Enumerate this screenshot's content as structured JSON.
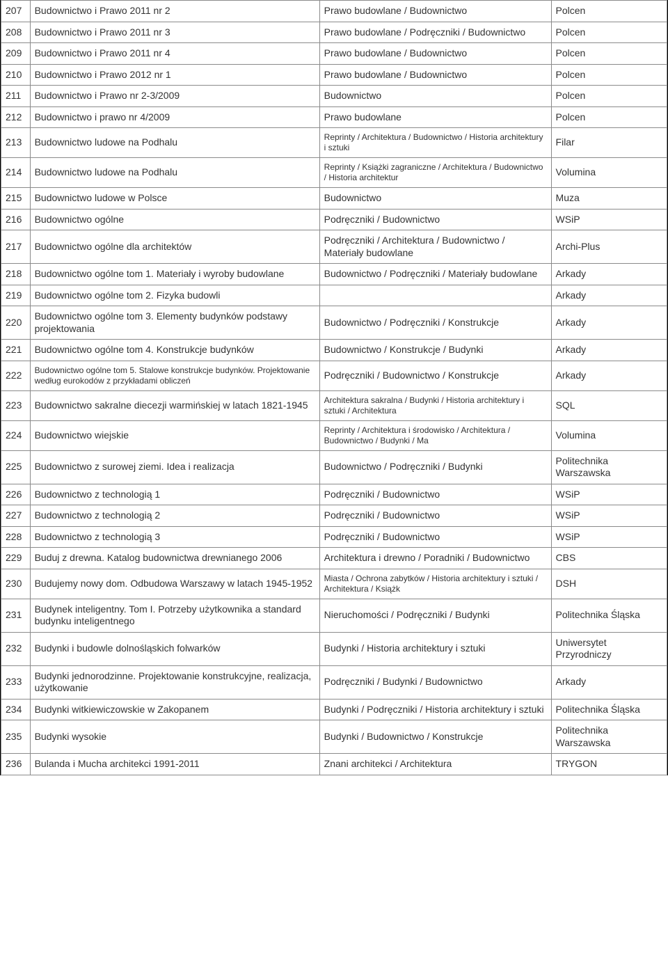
{
  "columns": {
    "num_width": 40,
    "title_width": 400,
    "cats_width": 320,
    "pub_width": 160
  },
  "rows": [
    {
      "num": "207",
      "title": "Budownictwo i Prawo 2011 nr 2",
      "cats": "Prawo budowlane  /  Budownictwo",
      "pub": "Polcen"
    },
    {
      "num": "208",
      "title": "Budownictwo i Prawo 2011 nr 3",
      "cats": "Prawo budowlane  /  Podręczniki  /  Budownictwo",
      "pub": "Polcen"
    },
    {
      "num": "209",
      "title": "Budownictwo i Prawo 2011 nr 4",
      "cats": "Prawo budowlane  /  Budownictwo",
      "pub": "Polcen"
    },
    {
      "num": "210",
      "title": "Budownictwo i Prawo 2012 nr 1",
      "cats": "Prawo budowlane  /  Budownictwo",
      "pub": "Polcen"
    },
    {
      "num": "211",
      "title": "Budownictwo i Prawo nr 2-3/2009",
      "cats": "Budownictwo",
      "pub": "Polcen"
    },
    {
      "num": "212",
      "title": "Budownictwo i prawo nr 4/2009",
      "cats": "Prawo budowlane",
      "pub": "Polcen"
    },
    {
      "num": "213",
      "title": "Budownictwo ludowe na Podhalu",
      "cats": "Reprinty  /  Architektura  /  Budownictwo  /  Historia architektury i sztuki",
      "cats_small": true,
      "pub": "Filar"
    },
    {
      "num": "214",
      "title": "Budownictwo ludowe na Podhalu",
      "cats": "Reprinty  /  Książki zagraniczne  /  Architektura  /  Budownictwo  /  Historia architektur",
      "cats_small": true,
      "pub": "Volumina"
    },
    {
      "num": "215",
      "title": "Budownictwo ludowe w Polsce",
      "cats": "Budownictwo",
      "pub": "Muza"
    },
    {
      "num": "216",
      "title": "Budownictwo ogólne",
      "cats": "Podręczniki  /  Budownictwo",
      "pub": "WSiP"
    },
    {
      "num": "217",
      "title": "Budownictwo ogólne dla architektów",
      "cats": "Podręczniki  /  Architektura  /  Budownictwo  /  Materiały budowlane",
      "pub": "Archi-Plus"
    },
    {
      "num": "218",
      "title": "Budownictwo ogólne tom 1. Materiały i wyroby budowlane",
      "cats": "Budownictwo  /  Podręczniki  /  Materiały budowlane",
      "pub": "Arkady"
    },
    {
      "num": "219",
      "title": "Budownictwo ogólne tom 2. Fizyka budowli",
      "cats": "",
      "pub": "Arkady"
    },
    {
      "num": "220",
      "title": "Budownictwo ogólne tom 3. Elementy budynków  podstawy projektowania",
      "cats": "Budownictwo  /  Podręczniki  /  Konstrukcje",
      "pub": "Arkady"
    },
    {
      "num": "221",
      "title": "Budownictwo ogólne tom 4. Konstrukcje budynków",
      "cats": "Budownictwo  /  Konstrukcje  /  Budynki",
      "pub": "Arkady"
    },
    {
      "num": "222",
      "title": "Budownictwo ogólne tom 5. Stalowe konstrukcje budynków. Projektowanie według eurokodów z przykładami obliczeń",
      "title_small": true,
      "cats": "Podręczniki  /  Budownictwo  /  Konstrukcje",
      "pub": "Arkady"
    },
    {
      "num": "223",
      "title": "Budownictwo sakralne diecezji warmińskiej w latach 1821-1945",
      "cats": "Architektura sakralna  /  Budynki  /  Historia architektury i sztuki  /  Architektura",
      "cats_small": true,
      "pub": "SQL"
    },
    {
      "num": "224",
      "title": "Budownictwo wiejskie",
      "cats": "Reprinty  /  Architektura i środowisko  /  Architektura  /  Budownictwo  /  Budynki  /  Ma",
      "cats_small": true,
      "pub": "Volumina"
    },
    {
      "num": "225",
      "title": "Budownictwo z surowej ziemi. Idea i realizacja",
      "cats": "Budownictwo  /  Podręczniki  /  Budynki",
      "pub": "Politechnika Warszawska"
    },
    {
      "num": "226",
      "title": "Budownictwo z technologią 1",
      "cats": "Podręczniki  /  Budownictwo",
      "pub": "WSiP"
    },
    {
      "num": "227",
      "title": "Budownictwo z technologią 2",
      "cats": "Podręczniki  /  Budownictwo",
      "pub": "WSiP"
    },
    {
      "num": "228",
      "title": "Budownictwo z technologią 3",
      "cats": "Podręczniki  /  Budownictwo",
      "pub": "WSiP"
    },
    {
      "num": "229",
      "title": "Buduj z drewna. Katalog budownictwa drewnianego 2006",
      "cats": "Architektura i drewno  /  Poradniki  /  Budownictwo",
      "pub": "CBS"
    },
    {
      "num": "230",
      "title": "Budujemy nowy dom. Odbudowa Warszawy w latach 1945-1952",
      "cats": "Miasta  /  Ochrona zabytków  /  Historia architektury i sztuki  /  Architektura  /  Książk",
      "cats_small": true,
      "pub": "DSH"
    },
    {
      "num": "231",
      "title": "Budynek inteligentny. Tom I. Potrzeby użytkownika a standard budynku inteligentnego",
      "cats": "Nieruchomości  /  Podręczniki  /  Budynki",
      "pub": "Politechnika Śląska"
    },
    {
      "num": "232",
      "title": "Budynki i budowle dolnośląskich folwarków",
      "cats": "Budynki  /  Historia architektury i sztuki",
      "pub": "Uniwersytet Przyrodniczy"
    },
    {
      "num": "233",
      "title": "Budynki jednorodzinne. Projektowanie konstrukcyjne, realizacja, użytkowanie",
      "cats": "Podręczniki  /  Budynki  /  Budownictwo",
      "pub": "Arkady"
    },
    {
      "num": "234",
      "title": "Budynki witkiewiczowskie w Zakopanem",
      "cats": "Budynki  /  Podręczniki  /  Historia architektury i sztuki",
      "pub": "Politechnika Śląska"
    },
    {
      "num": "235",
      "title": "Budynki wysokie",
      "cats": "Budynki  /  Budownictwo  /  Konstrukcje",
      "pub": "Politechnika Warszawska"
    },
    {
      "num": "236",
      "title": "Bulanda i Mucha architekci 1991-2011",
      "cats": "Znani architekci  /  Architektura",
      "pub": "TRYGON"
    }
  ]
}
